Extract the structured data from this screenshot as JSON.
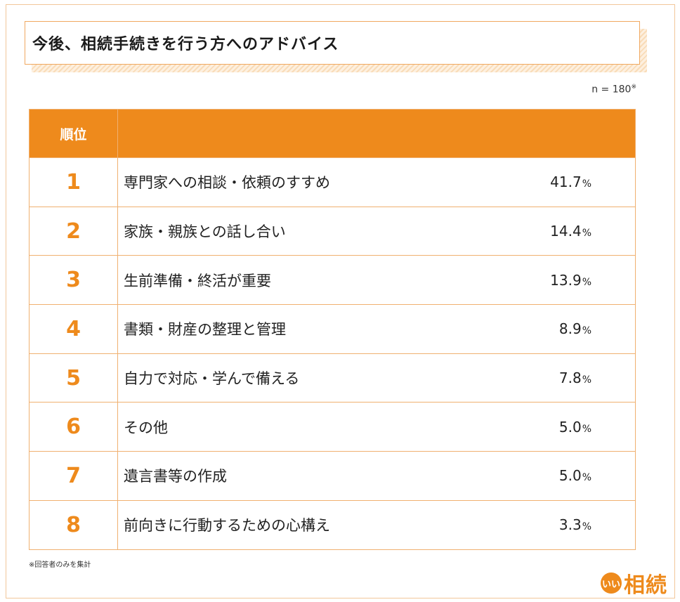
{
  "title": "今後、相続手続きを行う方へのアドバイス",
  "sample_size": "n = 180",
  "sample_mark": "※",
  "table": {
    "header_rank": "順位",
    "header_item": "",
    "rows": [
      {
        "rank": "1",
        "item": "専門家への相談・依頼のすすめ",
        "value": "41.7",
        "unit": "%"
      },
      {
        "rank": "2",
        "item": "家族・親族との話し合い",
        "value": "14.4",
        "unit": "%"
      },
      {
        "rank": "3",
        "item": "生前準備・終活が重要",
        "value": "13.9",
        "unit": "%"
      },
      {
        "rank": "4",
        "item": "書類・財産の整理と管理",
        "value": "8.9",
        "unit": "%"
      },
      {
        "rank": "5",
        "item": "自力で対応・学んで備える",
        "value": "7.8",
        "unit": "%"
      },
      {
        "rank": "6",
        "item": "その他",
        "value": "5.0",
        "unit": "%"
      },
      {
        "rank": "7",
        "item": "遺言書等の作成",
        "value": "5.0",
        "unit": "%"
      },
      {
        "rank": "8",
        "item": "前向きに行動するための心構え",
        "value": "3.3",
        "unit": "%"
      }
    ]
  },
  "footnote": "※回答者のみを集計",
  "brand": {
    "icon_text": "いい",
    "name": "相続"
  },
  "colors": {
    "accent": "#ee8a1c",
    "border": "#f0b070"
  }
}
